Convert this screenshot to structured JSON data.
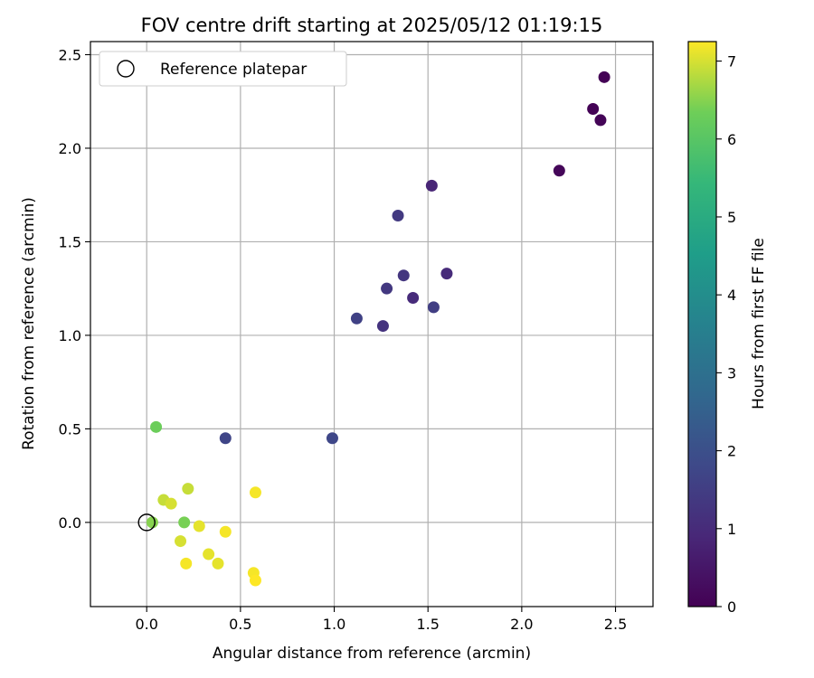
{
  "chart_data": {
    "type": "scatter",
    "title": "FOV centre drift starting at 2025/05/12 01:19:15",
    "xlabel": "Angular distance from reference (arcmin)",
    "ylabel": "Rotation from reference (arcmin)",
    "xlim": [
      -0.3,
      2.7
    ],
    "ylim": [
      -0.45,
      2.57
    ],
    "xticks": [
      "0.0",
      "0.5",
      "1.0",
      "1.5",
      "2.0",
      "2.5"
    ],
    "yticks": [
      "0.0",
      "0.5",
      "1.0",
      "1.5",
      "2.0",
      "2.5"
    ],
    "grid": true,
    "legend": {
      "position": "top-left",
      "label": "Reference platepar"
    },
    "reference_point": {
      "x": 0.0,
      "y": 0.0
    },
    "colorbar": {
      "label": "Hours from first FF file",
      "range": [
        0,
        7.25
      ],
      "ticks": [
        "0",
        "1",
        "2",
        "3",
        "4",
        "5",
        "6",
        "7"
      ],
      "colormap": "viridis"
    },
    "points": [
      {
        "x": 2.44,
        "y": 2.38,
        "t": 0.02
      },
      {
        "x": 2.38,
        "y": 2.21,
        "t": 0.05
      },
      {
        "x": 2.42,
        "y": 2.15,
        "t": 0.08
      },
      {
        "x": 2.2,
        "y": 1.88,
        "t": 0.12
      },
      {
        "x": 1.52,
        "y": 1.8,
        "t": 0.85
      },
      {
        "x": 1.34,
        "y": 1.64,
        "t": 1.4
      },
      {
        "x": 1.6,
        "y": 1.33,
        "t": 1.0
      },
      {
        "x": 1.37,
        "y": 1.32,
        "t": 1.3
      },
      {
        "x": 1.28,
        "y": 1.25,
        "t": 1.35
      },
      {
        "x": 1.42,
        "y": 1.2,
        "t": 1.0
      },
      {
        "x": 1.53,
        "y": 1.15,
        "t": 1.5
      },
      {
        "x": 1.12,
        "y": 1.09,
        "t": 1.6
      },
      {
        "x": 1.26,
        "y": 1.05,
        "t": 1.2
      },
      {
        "x": 0.42,
        "y": 0.45,
        "t": 1.7
      },
      {
        "x": 0.99,
        "y": 0.45,
        "t": 1.75
      },
      {
        "x": 0.05,
        "y": 0.51,
        "t": 6.3
      },
      {
        "x": 0.22,
        "y": 0.18,
        "t": 6.9
      },
      {
        "x": 0.58,
        "y": 0.16,
        "t": 7.2
      },
      {
        "x": 0.09,
        "y": 0.12,
        "t": 6.9
      },
      {
        "x": 0.13,
        "y": 0.1,
        "t": 7.0
      },
      {
        "x": 0.03,
        "y": 0.0,
        "t": 6.5
      },
      {
        "x": 0.2,
        "y": 0.0,
        "t": 6.4
      },
      {
        "x": 0.28,
        "y": -0.02,
        "t": 7.1
      },
      {
        "x": 0.42,
        "y": -0.05,
        "t": 7.2
      },
      {
        "x": 0.18,
        "y": -0.1,
        "t": 7.0
      },
      {
        "x": 0.33,
        "y": -0.17,
        "t": 7.1
      },
      {
        "x": 0.21,
        "y": -0.22,
        "t": 7.2
      },
      {
        "x": 0.38,
        "y": -0.22,
        "t": 7.1
      },
      {
        "x": 0.57,
        "y": -0.27,
        "t": 7.2
      },
      {
        "x": 0.58,
        "y": -0.31,
        "t": 7.25
      }
    ]
  }
}
